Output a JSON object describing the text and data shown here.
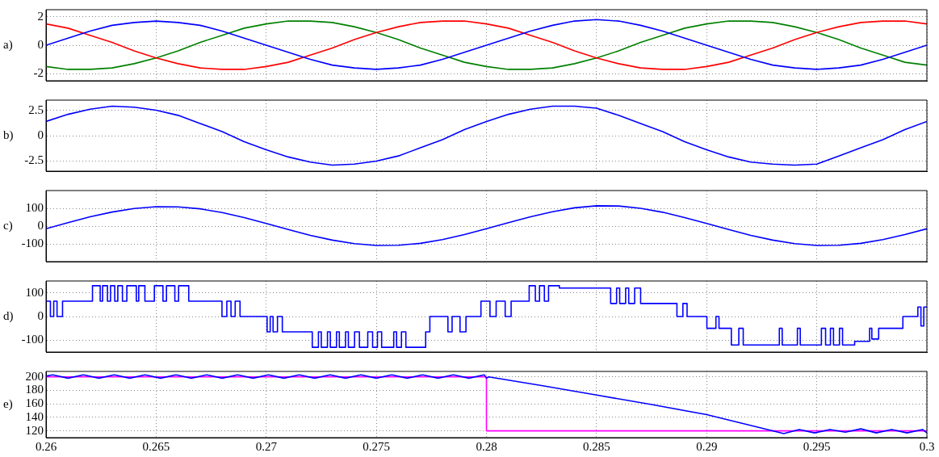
{
  "chart_data": [
    {
      "type": "line",
      "ylabel": "a)",
      "xlim": [
        0.26,
        0.3
      ],
      "xticks": [
        0.26,
        0.265,
        0.27,
        0.275,
        0.28,
        0.285,
        0.29,
        0.295,
        0.3
      ],
      "ylim": [
        -2.5,
        2.5
      ],
      "yticks": [
        -2,
        0,
        2
      ],
      "grid": true,
      "tick_labels": "y",
      "x": [
        0.26,
        0.261,
        0.262,
        0.263,
        0.264,
        0.265,
        0.266,
        0.267,
        0.268,
        0.269,
        0.27,
        0.271,
        0.272,
        0.273,
        0.274,
        0.275,
        0.276,
        0.277,
        0.278,
        0.279,
        0.28,
        0.281,
        0.282,
        0.283,
        0.284,
        0.285,
        0.286,
        0.287,
        0.288,
        0.289,
        0.29,
        0.291,
        0.292,
        0.293,
        0.294,
        0.295,
        0.296,
        0.297,
        0.298,
        0.299,
        0.3
      ],
      "series": [
        {
          "color": "#0000ff",
          "values": [
            0,
            0.5,
            1.0,
            1.4,
            1.6,
            1.7,
            1.6,
            1.4,
            1.0,
            0.5,
            0,
            -0.5,
            -1.0,
            -1.4,
            -1.6,
            -1.7,
            -1.6,
            -1.4,
            -1.0,
            -0.5,
            0,
            0.5,
            1.0,
            1.4,
            1.7,
            1.8,
            1.7,
            1.4,
            1.0,
            0.5,
            0,
            -0.5,
            -1.0,
            -1.4,
            -1.6,
            -1.7,
            -1.6,
            -1.4,
            -1.0,
            -0.5,
            0
          ]
        },
        {
          "color": "#ff0000",
          "values": [
            1.5,
            1.2,
            0.7,
            0.2,
            -0.4,
            -0.9,
            -1.3,
            -1.6,
            -1.7,
            -1.7,
            -1.5,
            -1.2,
            -0.7,
            -0.2,
            0.4,
            0.9,
            1.3,
            1.6,
            1.7,
            1.7,
            1.5,
            1.2,
            0.7,
            0.2,
            -0.4,
            -0.9,
            -1.3,
            -1.6,
            -1.7,
            -1.7,
            -1.5,
            -1.2,
            -0.7,
            -0.2,
            0.4,
            0.9,
            1.3,
            1.6,
            1.7,
            1.7,
            1.5
          ]
        },
        {
          "color": "#008000",
          "values": [
            -1.5,
            -1.7,
            -1.7,
            -1.6,
            -1.3,
            -0.9,
            -0.4,
            0.2,
            0.7,
            1.2,
            1.5,
            1.7,
            1.7,
            1.6,
            1.3,
            0.9,
            0.4,
            -0.2,
            -0.7,
            -1.2,
            -1.5,
            -1.7,
            -1.7,
            -1.6,
            -1.3,
            -0.9,
            -0.4,
            0.2,
            0.7,
            1.2,
            1.5,
            1.7,
            1.7,
            1.6,
            1.3,
            0.9,
            0.4,
            -0.2,
            -0.7,
            -1.2,
            -1.4
          ]
        }
      ]
    },
    {
      "type": "line",
      "ylabel": "b)",
      "xlim": [
        0.26,
        0.3
      ],
      "xticks": [
        0.26,
        0.265,
        0.27,
        0.275,
        0.28,
        0.285,
        0.29,
        0.295,
        0.3
      ],
      "ylim": [
        -3.5,
        3.5
      ],
      "yticks": [
        -2.5,
        0,
        2.5
      ],
      "grid": true,
      "tick_labels": "y",
      "x": [
        0.26,
        0.261,
        0.262,
        0.263,
        0.264,
        0.265,
        0.266,
        0.267,
        0.268,
        0.269,
        0.27,
        0.271,
        0.272,
        0.273,
        0.274,
        0.275,
        0.276,
        0.277,
        0.278,
        0.279,
        0.28,
        0.281,
        0.282,
        0.283,
        0.284,
        0.285,
        0.286,
        0.287,
        0.288,
        0.289,
        0.29,
        0.291,
        0.292,
        0.293,
        0.294,
        0.295,
        0.296,
        0.297,
        0.298,
        0.299,
        0.3
      ],
      "series": [
        {
          "color": "#0000ff",
          "values": [
            1.4,
            2.1,
            2.6,
            2.9,
            2.8,
            2.5,
            2.0,
            1.2,
            0.4,
            -0.6,
            -1.4,
            -2.1,
            -2.6,
            -2.9,
            -2.8,
            -2.5,
            -2.0,
            -1.2,
            -0.4,
            0.6,
            1.4,
            2.1,
            2.6,
            2.9,
            2.9,
            2.7,
            2.0,
            1.2,
            0.4,
            -0.6,
            -1.4,
            -2.1,
            -2.6,
            -2.8,
            -2.9,
            -2.8,
            -2.0,
            -1.2,
            -0.4,
            0.6,
            1.4
          ]
        }
      ]
    },
    {
      "type": "line",
      "ylabel": "c)",
      "xlim": [
        0.26,
        0.3
      ],
      "xticks": [
        0.26,
        0.265,
        0.27,
        0.275,
        0.28,
        0.285,
        0.29,
        0.295,
        0.3
      ],
      "ylim": [
        -200,
        200
      ],
      "yticks": [
        -100,
        0,
        100
      ],
      "grid": true,
      "tick_labels": "y",
      "x": [
        0.26,
        0.261,
        0.262,
        0.263,
        0.264,
        0.265,
        0.266,
        0.267,
        0.268,
        0.269,
        0.27,
        0.271,
        0.272,
        0.273,
        0.274,
        0.275,
        0.276,
        0.277,
        0.278,
        0.279,
        0.28,
        0.281,
        0.282,
        0.283,
        0.284,
        0.285,
        0.286,
        0.287,
        0.288,
        0.289,
        0.29,
        0.291,
        0.292,
        0.293,
        0.294,
        0.295,
        0.296,
        0.297,
        0.298,
        0.299,
        0.3
      ],
      "series": [
        {
          "color": "#0000ff",
          "values": [
            -15,
            19,
            52,
            79,
            99,
            109,
            108,
            97,
            76,
            48,
            15,
            -19,
            -52,
            -79,
            -99,
            -109,
            -108,
            -97,
            -76,
            -48,
            -15,
            19,
            52,
            81,
            103,
            114,
            113,
            100,
            78,
            48,
            15,
            -19,
            -52,
            -79,
            -99,
            -109,
            -108,
            -97,
            -76,
            -48,
            -15
          ]
        }
      ]
    },
    {
      "type": "step",
      "ylabel": "d)",
      "xlim": [
        0.26,
        0.3
      ],
      "xticks": [
        0.26,
        0.265,
        0.27,
        0.275,
        0.28,
        0.285,
        0.29,
        0.295,
        0.3
      ],
      "ylim": [
        -150,
        150
      ],
      "yticks": [
        -100,
        0,
        100
      ],
      "grid": true,
      "tick_labels": "y",
      "series": [
        {
          "color": "#0000ff",
          "x": [
            0.26,
            0.2602,
            0.26035,
            0.2605,
            0.26075,
            0.26211,
            0.26246,
            0.26257,
            0.26279,
            0.26293,
            0.26312,
            0.26326,
            0.26347,
            0.26367,
            0.2641,
            0.26421,
            0.26449,
            0.26492,
            0.26531,
            0.26547,
            0.26585,
            0.26602,
            0.26648,
            0.26799,
            0.26821,
            0.2684,
            0.26859,
            0.26881,
            0.27004,
            0.27018,
            0.27031,
            0.27051,
            0.27073,
            0.27209,
            0.27237,
            0.2725,
            0.27278,
            0.27291,
            0.27319,
            0.27332,
            0.2736,
            0.27373,
            0.27401,
            0.27423,
            0.27461,
            0.27483,
            0.27505,
            0.27524,
            0.27579,
            0.27592,
            0.27614,
            0.27634,
            0.27724,
            0.27743,
            0.27825,
            0.27844,
            0.2788,
            0.27907,
            0.27975,
            0.28016,
            0.28044,
            0.28085,
            0.28112,
            0.28194,
            0.28222,
            0.28241,
            0.28263,
            0.28282,
            0.28331,
            0.28564,
            0.28591,
            0.28605,
            0.28632,
            0.28646,
            0.28673,
            0.287,
            0.28865,
            0.28892,
            0.28911,
            0.29001,
            0.29042,
            0.29056,
            0.29112,
            0.29146,
            0.29166,
            0.2933,
            0.29343,
            0.29412,
            0.29425,
            0.29521,
            0.2954,
            0.29562,
            0.29576,
            0.29603,
            0.29617,
            0.29672,
            0.2974,
            0.2975,
            0.29781,
            0.29891,
            0.29959,
            0.29973,
            0.29986,
            0.3
          ],
          "values": [
            65,
            0,
            65,
            0,
            65,
            130,
            65,
            130,
            65,
            130,
            65,
            130,
            65,
            130,
            65,
            130,
            65,
            130,
            65,
            130,
            65,
            130,
            65,
            0,
            65,
            0,
            65,
            0,
            -65,
            0,
            -65,
            0,
            -65,
            -130,
            -65,
            -130,
            -65,
            -130,
            -65,
            -130,
            -65,
            -130,
            -65,
            -130,
            -65,
            -130,
            -65,
            -130,
            -65,
            -130,
            -65,
            -130,
            -65,
            0,
            -65,
            0,
            -65,
            0,
            65,
            0,
            65,
            0,
            65,
            130,
            65,
            130,
            65,
            130,
            120,
            55,
            120,
            55,
            120,
            55,
            120,
            55,
            0,
            55,
            0,
            -50,
            0,
            -50,
            -120,
            -50,
            -120,
            -50,
            -120,
            -50,
            -120,
            -50,
            -120,
            -50,
            -120,
            -50,
            -120,
            -105,
            -50,
            -95,
            -50,
            0,
            40,
            -40,
            40,
            40
          ]
        }
      ]
    },
    {
      "type": "line",
      "ylabel": "e)",
      "xlim": [
        0.26,
        0.3
      ],
      "xticks": [
        0.26,
        0.265,
        0.27,
        0.275,
        0.28,
        0.285,
        0.29,
        0.295,
        0.3
      ],
      "ylim": [
        110,
        208
      ],
      "yticks": [
        120,
        140,
        160,
        180,
        200
      ],
      "grid": true,
      "series": [
        {
          "color": "#0000ff",
          "x": [
            0.26,
            0.2603,
            0.261,
            0.2617,
            0.2624,
            0.2631,
            0.2638,
            0.2645,
            0.2652,
            0.2659,
            0.2666,
            0.2673,
            0.268,
            0.2687,
            0.2694,
            0.2701,
            0.2708,
            0.2715,
            0.2722,
            0.2729,
            0.2736,
            0.2743,
            0.275,
            0.2757,
            0.2764,
            0.2771,
            0.2778,
            0.2785,
            0.2792,
            0.2799,
            0.28,
            0.2801,
            0.2825,
            0.285,
            0.2875,
            0.29,
            0.2925,
            0.2935,
            0.2942,
            0.2949,
            0.2956,
            0.2963,
            0.297,
            0.2977,
            0.2984,
            0.2991,
            0.2998,
            0.3
          ],
          "values": [
            201,
            203,
            198,
            203,
            198,
            203,
            198,
            203,
            198,
            203,
            198,
            203,
            198,
            203,
            198,
            203,
            198,
            203,
            198,
            203,
            198,
            203,
            198,
            203,
            198,
            203,
            198,
            203,
            198,
            203,
            198,
            200,
            187,
            173,
            159,
            144,
            124,
            116,
            122,
            117,
            122,
            118,
            123,
            117,
            122,
            117,
            122,
            117
          ]
        },
        {
          "color": "#ff00ff",
          "x": [
            0.26,
            0.28,
            0.28,
            0.3
          ],
          "values": [
            200,
            200,
            120,
            120
          ]
        }
      ]
    }
  ]
}
